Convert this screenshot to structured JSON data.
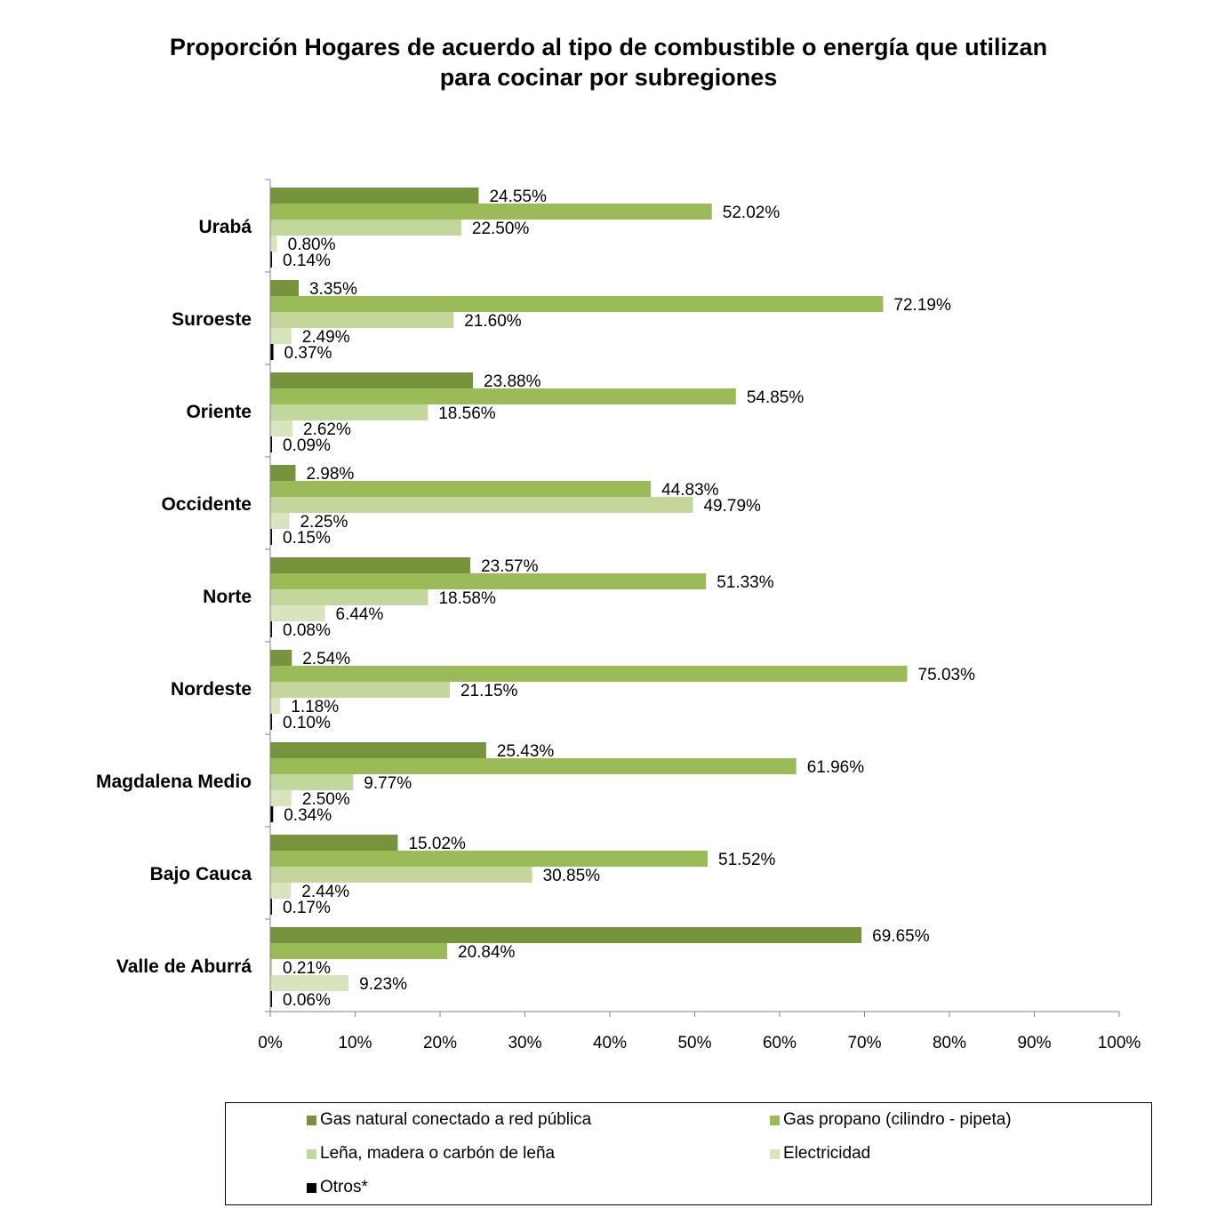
{
  "chart_data": {
    "type": "bar",
    "orientation": "horizontal",
    "title_lines": [
      "Proporción Hogares de acuerdo al tipo de combustible o energía que utilizan",
      "para cocinar por subregiones"
    ],
    "categories": [
      "Urabá",
      "Suroeste",
      "Oriente",
      "Occidente",
      "Norte",
      "Nordeste",
      "Magdalena Medio",
      "Bajo Cauca",
      "Valle de Aburrá"
    ],
    "series": [
      {
        "name": "Gas natural conectado a red pública",
        "color": "#77933c",
        "values": [
          24.55,
          3.35,
          23.88,
          2.98,
          23.57,
          2.54,
          25.43,
          15.02,
          69.65
        ],
        "labels": [
          "24.55%",
          "3.35%",
          "23.88%",
          "2.98%",
          "23.57%",
          "2.54%",
          "25.43%",
          "15.02%",
          "69.65%"
        ]
      },
      {
        "name": "Gas propano (cilindro - pipeta)",
        "color": "#9bbb59",
        "values": [
          52.02,
          72.19,
          54.85,
          44.83,
          51.33,
          75.03,
          61.96,
          51.52,
          20.84
        ],
        "labels": [
          "52.02%",
          "72.19%",
          "54.85%",
          "44.83%",
          "51.33%",
          "75.03%",
          "61.96%",
          "51.52%",
          "20.84%"
        ]
      },
      {
        "name": "Leña, madera o carbón de leña",
        "color": "#c3d69b",
        "values": [
          22.5,
          21.6,
          18.56,
          49.79,
          18.58,
          21.15,
          9.77,
          30.85,
          0.21
        ],
        "labels": [
          "22.50%",
          "21.60%",
          "18.56%",
          "49.79%",
          "18.58%",
          "21.15%",
          "9.77%",
          "30.85%",
          "0.21%"
        ]
      },
      {
        "name": "Electricidad",
        "color": "#d7e4bd",
        "values": [
          0.8,
          2.49,
          2.62,
          2.25,
          6.44,
          1.18,
          2.5,
          2.44,
          9.23
        ],
        "labels": [
          "0.80%",
          "2.49%",
          "2.62%",
          "2.25%",
          "6.44%",
          "1.18%",
          "2.50%",
          "2.44%",
          "9.23%"
        ]
      },
      {
        "name": "Otros*",
        "color": "#000000",
        "values": [
          0.14,
          0.37,
          0.09,
          0.15,
          0.08,
          0.1,
          0.34,
          0.17,
          0.06
        ],
        "labels": [
          "0.14%",
          "0.37%",
          "0.09%",
          "0.15%",
          "0.08%",
          "0.10%",
          "0.34%",
          "0.17%",
          "0.06%"
        ]
      }
    ],
    "xlim": [
      0,
      100
    ],
    "xticks": [
      0,
      10,
      20,
      30,
      40,
      50,
      60,
      70,
      80,
      90,
      100
    ],
    "xtick_labels": [
      "0%",
      "10%",
      "20%",
      "30%",
      "40%",
      "50%",
      "60%",
      "70%",
      "80%",
      "90%",
      "100%"
    ],
    "xlabel": "",
    "ylabel": "",
    "grid": false,
    "legend_position": "bottom"
  }
}
